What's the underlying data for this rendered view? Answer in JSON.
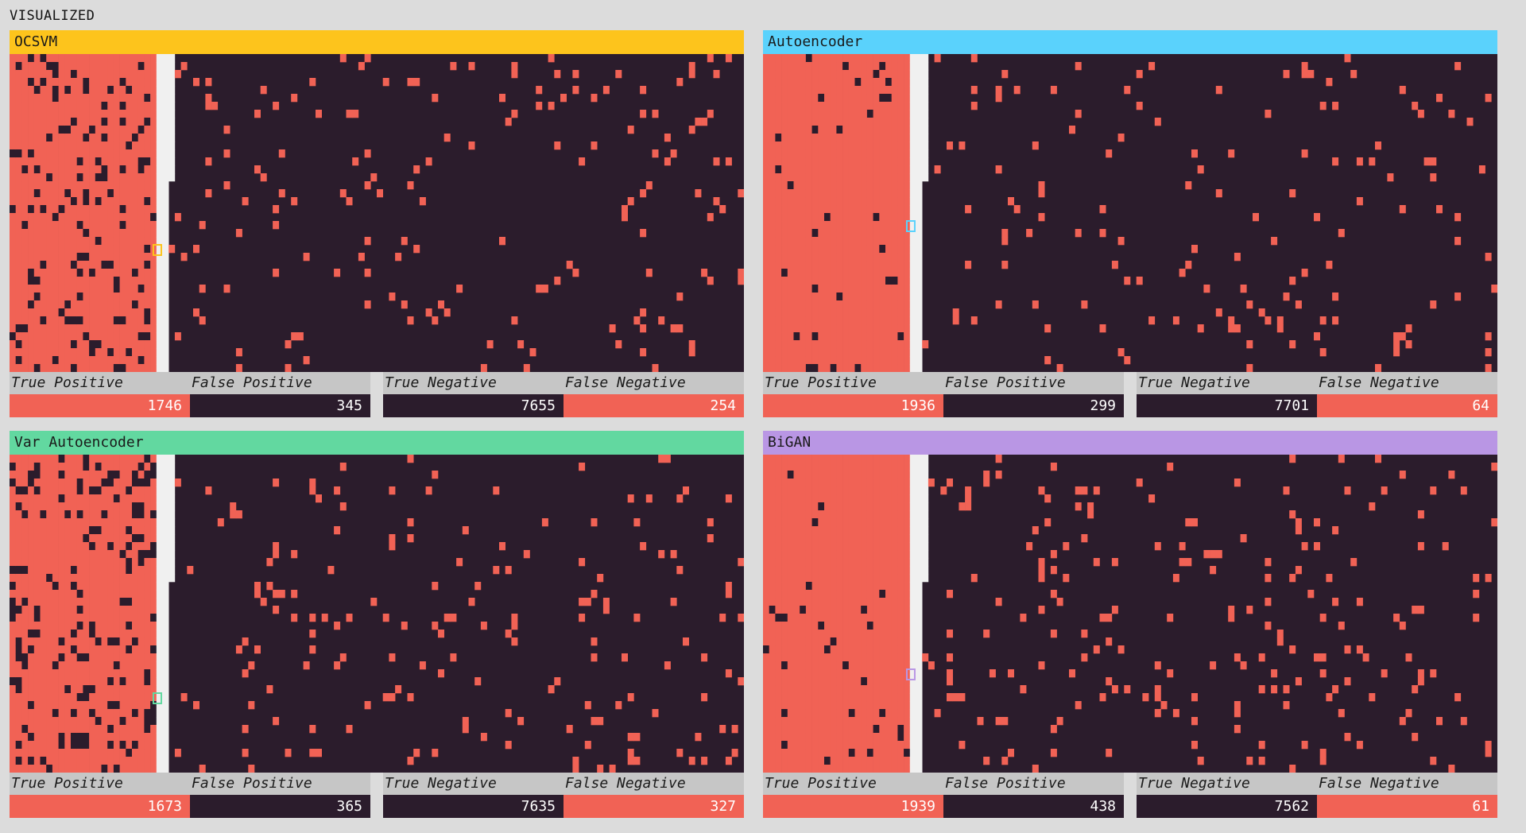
{
  "page": {
    "title": "VISUALIZED"
  },
  "colors": {
    "background": "#dcdcdc",
    "anomaly": "#f16255",
    "normal": "#2b1c2c",
    "boundary": "#f0f0f0",
    "stat_label_bg": "#c6c6c6"
  },
  "labels": {
    "tp": "True Positive",
    "fp": "False Positive",
    "tn": "True Negative",
    "fn": "False Negative"
  },
  "chart_data": [
    {
      "type": "heatmap",
      "title": "OCSVM",
      "header_color": "#fdc41c",
      "marker_color": "#fdc41c",
      "values": {
        "true_positive": 1746,
        "false_positive": 345,
        "true_negative": 7655,
        "false_negative": 254
      }
    },
    {
      "type": "heatmap",
      "title": "Autoencoder",
      "header_color": "#5ad2fc",
      "marker_color": "#5ad2fc",
      "values": {
        "true_positive": 1936,
        "false_positive": 299,
        "true_negative": 7701,
        "false_negative": 64
      }
    },
    {
      "type": "heatmap",
      "title": "Var Autoencoder",
      "header_color": "#62d8a0",
      "marker_color": "#62d8a0",
      "values": {
        "true_positive": 1673,
        "false_positive": 365,
        "true_negative": 7635,
        "false_negative": 327
      }
    },
    {
      "type": "heatmap",
      "title": "BiGAN",
      "header_color": "#b996e4",
      "marker_color": "#b996e4",
      "values": {
        "true_positive": 1939,
        "false_positive": 438,
        "true_negative": 7562,
        "false_negative": 61
      }
    }
  ]
}
